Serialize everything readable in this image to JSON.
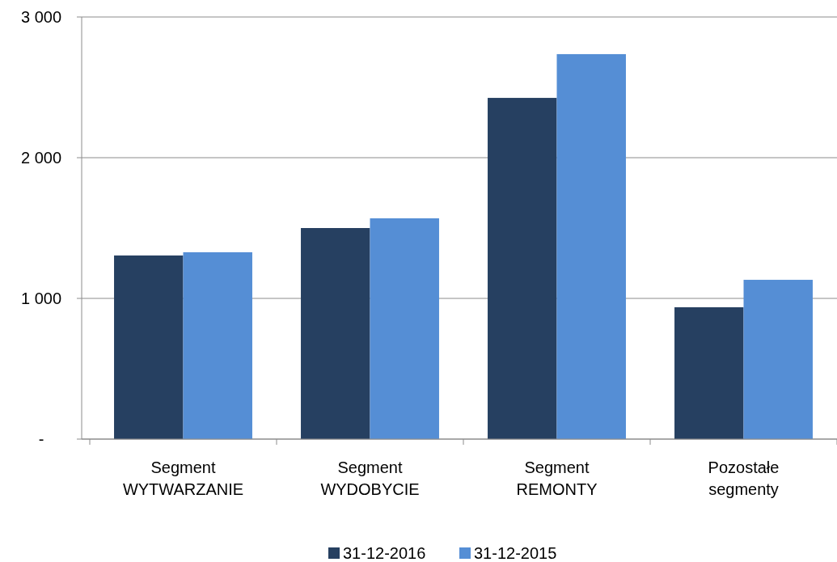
{
  "chart_data": {
    "type": "bar",
    "categories": [
      "Segment\nWYTWARZANIE",
      "Segment\nWYDOBYCIE",
      "Segment\nREMONTY",
      "Pozostałe\nsegmenty"
    ],
    "series": [
      {
        "name": "31-12-2016",
        "color": "#264061",
        "values": [
          1305,
          1500,
          2425,
          937
        ]
      },
      {
        "name": "31-12-2015",
        "color": "#558ed5",
        "values": [
          1328,
          1569,
          2736,
          1132
        ]
      }
    ],
    "ylim": [
      0,
      3000
    ],
    "yticks": [
      {
        "value": 0,
        "label": "-"
      },
      {
        "value": 1000,
        "label": "1 000"
      },
      {
        "value": 2000,
        "label": "2 000"
      },
      {
        "value": 3000,
        "label": "3 000"
      }
    ],
    "grid": "y",
    "legend": "bottom"
  }
}
